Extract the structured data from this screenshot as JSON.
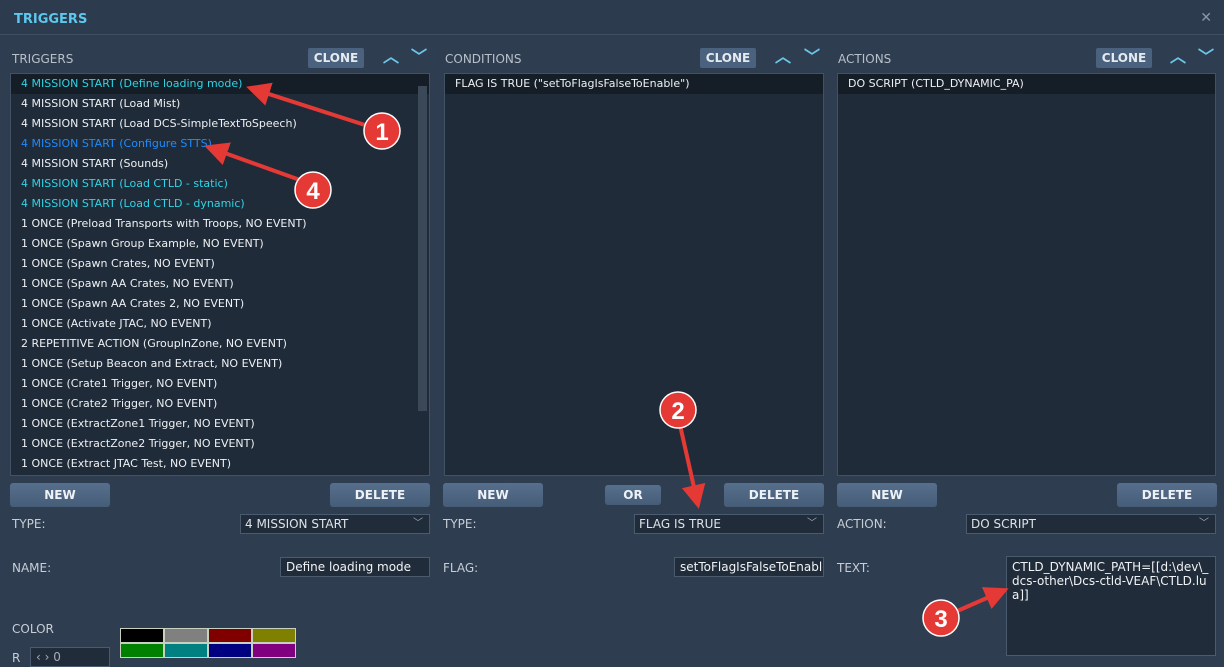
{
  "window": {
    "title": "TRIGGERS",
    "close_icon": "close-icon"
  },
  "triggers": {
    "header": "TRIGGERS",
    "clone": "CLONE",
    "items": [
      {
        "label": "4 MISSION START (Define loading mode)",
        "color": "cyan",
        "selected": true
      },
      {
        "label": "4 MISSION START (Load Mist)",
        "color": "white"
      },
      {
        "label": "4 MISSION START (Load DCS-SimpleTextToSpeech)",
        "color": "white"
      },
      {
        "label": "4 MISSION START (Configure STTS)",
        "color": "blue"
      },
      {
        "label": "4 MISSION START (Sounds)",
        "color": "white"
      },
      {
        "label": "4 MISSION START (Load CTLD - static)",
        "color": "cyan"
      },
      {
        "label": "4 MISSION START (Load CTLD - dynamic)",
        "color": "cyan"
      },
      {
        "label": "1 ONCE (Preload Transports with Troops, NO EVENT)",
        "color": "white"
      },
      {
        "label": "1 ONCE (Spawn Group Example, NO EVENT)",
        "color": "white"
      },
      {
        "label": "1 ONCE (Spawn Crates, NO EVENT)",
        "color": "white"
      },
      {
        "label": "1 ONCE (Spawn AA Crates, NO EVENT)",
        "color": "white"
      },
      {
        "label": "1 ONCE (Spawn AA Crates 2, NO EVENT)",
        "color": "white"
      },
      {
        "label": "1 ONCE (Activate JTAC, NO EVENT)",
        "color": "white"
      },
      {
        "label": "2 REPETITIVE ACTION (GroupInZone, NO EVENT)",
        "color": "white"
      },
      {
        "label": "1 ONCE (Setup Beacon and Extract, NO EVENT)",
        "color": "white"
      },
      {
        "label": "1 ONCE (Crate1 Trigger, NO EVENT)",
        "color": "white"
      },
      {
        "label": "1 ONCE (Crate2 Trigger, NO EVENT)",
        "color": "white"
      },
      {
        "label": "1 ONCE (ExtractZone1 Trigger, NO EVENT)",
        "color": "white"
      },
      {
        "label": "1 ONCE (ExtractZone2 Trigger, NO EVENT)",
        "color": "white"
      },
      {
        "label": "1 ONCE (Extract JTAC Test, NO EVENT)",
        "color": "white"
      }
    ],
    "new": "NEW",
    "delete": "DELETE",
    "type_label": "TYPE:",
    "type_value": "4 MISSION START",
    "name_label": "NAME:",
    "name_value": "Define loading mode",
    "color_label": "COLOR",
    "r_label": "R",
    "r_value": "0",
    "swatches": [
      "#000000",
      "#808080",
      "#800000",
      "#808000",
      "#008000",
      "#008080",
      "#000080",
      "#800080"
    ]
  },
  "conditions": {
    "header": "CONDITIONS",
    "clone": "CLONE",
    "items": [
      {
        "label": "FLAG IS TRUE (\"setToFlagIsFalseToEnable\")"
      }
    ],
    "new": "NEW",
    "or": "OR",
    "delete": "DELETE",
    "type_label": "TYPE:",
    "type_value": "FLAG IS TRUE",
    "flag_label": "FLAG:",
    "flag_value": "setToFlagIsFalseToEnable"
  },
  "actions": {
    "header": "ACTIONS",
    "clone": "CLONE",
    "items": [
      {
        "label": "DO SCRIPT (CTLD_DYNAMIC_PA)"
      }
    ],
    "new": "NEW",
    "delete": "DELETE",
    "action_label": "ACTION:",
    "action_value": "DO SCRIPT",
    "text_label": "TEXT:",
    "text_value": "CTLD_DYNAMIC_PATH=[[d:\\dev\\_dcs-other\\Dcs-ctld-VEAF\\CTLD.lua]]"
  },
  "annotations": [
    "1",
    "2",
    "3",
    "4"
  ],
  "colors": {
    "cyan": "#2fd4e4",
    "blue": "#1e8cff",
    "annotation": "#e53935"
  }
}
